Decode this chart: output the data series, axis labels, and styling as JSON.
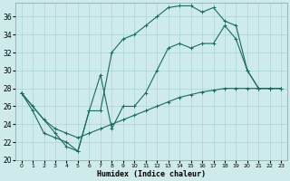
{
  "xlabel": "Humidex (Indice chaleur)",
  "xlim": [
    -0.5,
    23.5
  ],
  "ylim": [
    20,
    37.5
  ],
  "yticks": [
    20,
    22,
    24,
    26,
    28,
    30,
    32,
    34,
    36
  ],
  "xticks": [
    0,
    1,
    2,
    3,
    4,
    5,
    6,
    7,
    8,
    9,
    10,
    11,
    12,
    13,
    14,
    15,
    16,
    17,
    18,
    19,
    20,
    21,
    22,
    23
  ],
  "bg_color": "#ceeaea",
  "grid_color": "#aad4d4",
  "line_color": "#1a6b5a",
  "line1_x": [
    0,
    1,
    2,
    3,
    4,
    5,
    6,
    7,
    8,
    9,
    10,
    11,
    12,
    13,
    14,
    15,
    16,
    17,
    18,
    19,
    20,
    21,
    22,
    23
  ],
  "line1_y": [
    27.5,
    25.5,
    23.0,
    22.5,
    22.0,
    21.0,
    25.5,
    25.5,
    32.0,
    33.5,
    34.0,
    35.0,
    36.0,
    37.0,
    37.2,
    37.2,
    36.5,
    37.0,
    35.5,
    35.0,
    30.0,
    28.0,
    28.0,
    28.0
  ],
  "line2_x": [
    0,
    3,
    4,
    5,
    6,
    7,
    8,
    9,
    10,
    11,
    12,
    13,
    14,
    15,
    16,
    17,
    18,
    19,
    20,
    21,
    22,
    23
  ],
  "line2_y": [
    27.5,
    23.0,
    21.5,
    21.0,
    25.5,
    29.5,
    23.5,
    26.0,
    26.0,
    27.5,
    30.0,
    32.5,
    33.0,
    32.5,
    33.0,
    33.0,
    35.0,
    33.5,
    30.0,
    28.0,
    28.0,
    28.0
  ],
  "line3_x": [
    0,
    1,
    2,
    3,
    4,
    5,
    6,
    7,
    8,
    9,
    10,
    11,
    12,
    13,
    14,
    15,
    16,
    17,
    18,
    19,
    20,
    21,
    22,
    23
  ],
  "line3_y": [
    27.5,
    26.0,
    24.5,
    23.5,
    23.0,
    22.5,
    23.0,
    23.5,
    24.0,
    24.5,
    25.0,
    25.5,
    26.0,
    26.5,
    27.0,
    27.3,
    27.6,
    27.8,
    28.0,
    28.0,
    28.0,
    28.0,
    28.0,
    28.0
  ]
}
